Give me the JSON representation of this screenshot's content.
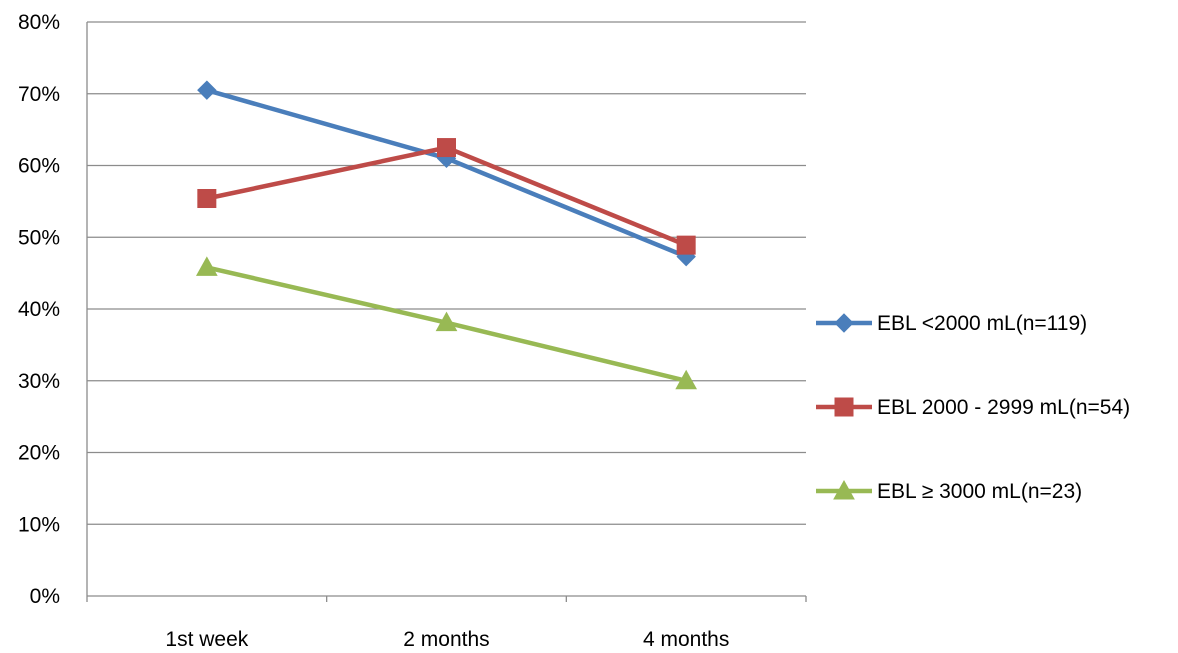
{
  "chart_data": {
    "type": "line",
    "categories": [
      "1st week",
      "2 months",
      "4 months"
    ],
    "y_ticks": [
      "0%",
      "10%",
      "20%",
      "30%",
      "40%",
      "50%",
      "60%",
      "70%",
      "80%"
    ],
    "ylim": [
      0,
      80
    ],
    "y_unit": "%",
    "grid": true,
    "legend_position": "right",
    "series": [
      {
        "name": "EBL <2000 mL(n=119)",
        "values": [
          70.5,
          61.0,
          47.3
        ],
        "color": "#4a7ebb",
        "marker": "diamond"
      },
      {
        "name": "EBL 2000 - 2999 mL(n=54)",
        "values": [
          55.4,
          62.5,
          48.9
        ],
        "color": "#be4b48",
        "marker": "square"
      },
      {
        "name": "EBL ≥ 3000 mL(n=23)",
        "values": [
          45.8,
          38.1,
          30.0
        ],
        "color": "#98b954",
        "marker": "triangle"
      }
    ]
  }
}
